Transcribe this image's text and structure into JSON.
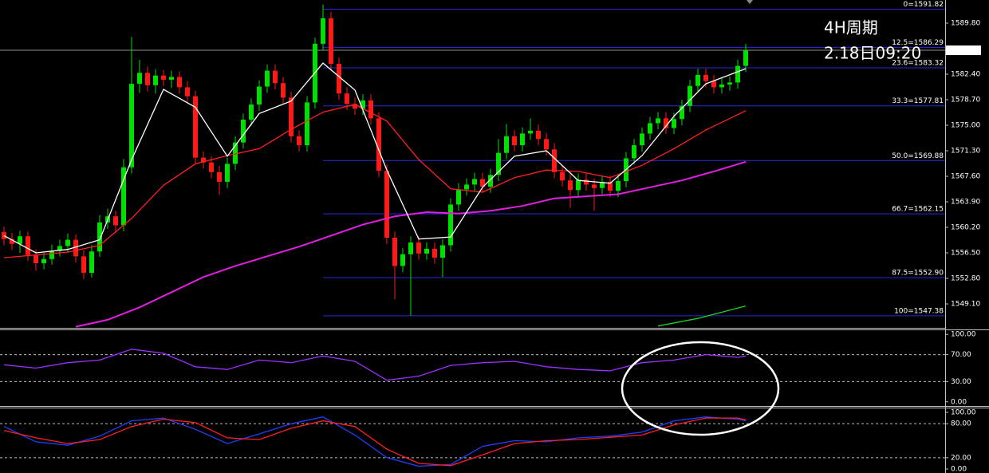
{
  "chart_data": [
    {
      "type": "candlestick",
      "annotations": [
        "4H周期",
        "2.18日09:20"
      ],
      "annotation_color": "#ff3b3b",
      "up_color": "#00e000",
      "down_color": "#ff1a1a",
      "xlim": [
        -0.5,
        118
      ],
      "ylim": [
        1545.75,
        1593.15
      ],
      "yticks": [
        {
          "value": 1589.8,
          "label": "1589.80"
        },
        {
          "value": 1582.4,
          "label": "1582.40"
        },
        {
          "value": 1578.7,
          "label": "1578.70"
        },
        {
          "value": 1575,
          "label": "1575.00"
        },
        {
          "value": 1571.3,
          "label": "1571.30"
        },
        {
          "value": 1567.6,
          "label": "1567.60"
        },
        {
          "value": 1563.9,
          "label": "1563.90"
        },
        {
          "value": 1560.2,
          "label": "1560.20"
        },
        {
          "value": 1556.5,
          "label": "1556.50"
        },
        {
          "value": 1552.8,
          "label": "1552.80"
        },
        {
          "value": 1549.1,
          "label": "1549.10"
        }
      ],
      "last_price": 1585.86,
      "fib_color": "#2a2ad8",
      "fib_levels": [
        {
          "value": 1591.82,
          "label": "0=1591.82"
        },
        {
          "value": 1586.29,
          "label": "12.5=1586.29"
        },
        {
          "value": 1583.32,
          "label": "23.6=1583.32"
        },
        {
          "value": 1577.81,
          "label": "33.3=1577.81"
        },
        {
          "value": 1569.88,
          "label": "50.0=1569.88"
        },
        {
          "value": 1562.15,
          "label": "66.7=1562.15"
        },
        {
          "value": 1552.9,
          "label": "87.5=1552.90"
        },
        {
          "value": 1547.38,
          "label": "100=1547.38"
        }
      ],
      "open": [
        1559.5,
        1558.5,
        1557.8,
        1558.9,
        1556.2,
        1555.0,
        1555.6,
        1556.8,
        1557.5,
        1558.4,
        1556.0,
        1553.6,
        1556.7,
        1560.9,
        1561.8,
        1560.5,
        1568.9,
        1581.0,
        1582.6,
        1580.8,
        1582.2,
        1581.6,
        1582.0,
        1580.5,
        1579.2,
        1570.3,
        1569.6,
        1568.2,
        1566.8,
        1569.4,
        1572.5,
        1575.8,
        1578.0,
        1580.6,
        1582.9,
        1581.1,
        1579.0,
        1573.4,
        1572.1,
        1578.3,
        1586.8,
        1590.5,
        1583.9,
        1579.6,
        1578.1,
        1577.4,
        1578.6,
        1576.0,
        1568.4,
        1558.7,
        1554.6,
        1556.3,
        1558.0,
        1556.4,
        1557.1,
        1555.8,
        1557.6,
        1563.5,
        1565.7,
        1566.4,
        1567.2,
        1566.1,
        1567.8,
        1571.0,
        1573.4,
        1572.1,
        1573.8,
        1574.2,
        1573.0,
        1571.5,
        1568.2,
        1567.0,
        1565.6,
        1567.1,
        1566.4,
        1565.9,
        1566.8,
        1565.5,
        1566.9,
        1570.2,
        1572.1,
        1573.8,
        1575.3,
        1576.0,
        1574.6,
        1575.9,
        1577.8,
        1580.7,
        1582.3,
        1581.4,
        1580.5,
        1580.9,
        1581.2,
        1583.6
      ],
      "high": [
        1560.3,
        1559.4,
        1559.7,
        1559.6,
        1557.0,
        1556.5,
        1557.7,
        1558.4,
        1559.3,
        1559.2,
        1556.9,
        1557.6,
        1562.0,
        1562.9,
        1562.6,
        1570.1,
        1587.8,
        1584.5,
        1583.5,
        1583.1,
        1583.0,
        1582.9,
        1582.8,
        1581.4,
        1580.0,
        1571.2,
        1570.5,
        1569.1,
        1570.3,
        1573.4,
        1576.7,
        1578.9,
        1581.5,
        1583.8,
        1583.8,
        1582.0,
        1579.9,
        1574.3,
        1579.2,
        1587.7,
        1592.5,
        1591.4,
        1584.8,
        1580.5,
        1579.0,
        1579.5,
        1579.5,
        1576.9,
        1569.3,
        1559.6,
        1557.2,
        1558.9,
        1558.9,
        1558.0,
        1558.0,
        1558.5,
        1564.4,
        1566.6,
        1567.3,
        1568.1,
        1568.1,
        1568.7,
        1573.0,
        1575.2,
        1574.3,
        1574.7,
        1576.0,
        1575.1,
        1573.9,
        1572.4,
        1569.1,
        1567.9,
        1568.0,
        1568.0,
        1567.3,
        1567.7,
        1567.7,
        1567.8,
        1571.1,
        1573.0,
        1574.7,
        1576.2,
        1576.9,
        1576.9,
        1576.8,
        1578.7,
        1581.6,
        1583.2,
        1583.2,
        1582.3,
        1581.8,
        1582.1,
        1584.5,
        1586.8
      ],
      "low": [
        1557.6,
        1556.9,
        1556.5,
        1555.3,
        1553.9,
        1554.1,
        1554.8,
        1556.0,
        1556.6,
        1555.1,
        1552.7,
        1552.9,
        1555.9,
        1560.0,
        1559.4,
        1559.6,
        1568.0,
        1579.7,
        1579.9,
        1579.6,
        1580.7,
        1580.4,
        1579.6,
        1578.3,
        1569.4,
        1568.7,
        1567.3,
        1564.9,
        1565.9,
        1568.5,
        1571.6,
        1574.9,
        1577.1,
        1579.7,
        1580.2,
        1578.1,
        1572.5,
        1571.2,
        1571.2,
        1577.4,
        1585.9,
        1583.0,
        1578.7,
        1577.2,
        1576.5,
        1576.5,
        1575.1,
        1567.5,
        1557.8,
        1549.8,
        1553.7,
        1547.4,
        1555.5,
        1555.5,
        1554.9,
        1553.0,
        1556.7,
        1562.6,
        1564.8,
        1565.5,
        1565.2,
        1565.2,
        1566.9,
        1570.1,
        1571.2,
        1571.2,
        1572.9,
        1572.1,
        1570.6,
        1567.3,
        1566.1,
        1563.0,
        1564.7,
        1565.5,
        1562.6,
        1565.0,
        1564.6,
        1564.6,
        1566.0,
        1569.3,
        1571.2,
        1572.9,
        1574.4,
        1573.7,
        1573.7,
        1575.0,
        1576.9,
        1579.8,
        1580.5,
        1579.6,
        1579.6,
        1580.0,
        1580.3,
        1582.7
      ],
      "close": [
        1558.5,
        1557.8,
        1558.9,
        1556.2,
        1555.0,
        1555.6,
        1556.8,
        1557.5,
        1558.4,
        1556.0,
        1553.6,
        1556.7,
        1560.9,
        1561.8,
        1560.5,
        1568.9,
        1581.0,
        1582.6,
        1580.8,
        1582.2,
        1581.6,
        1582.0,
        1580.5,
        1579.2,
        1570.3,
        1569.6,
        1568.2,
        1566.8,
        1569.4,
        1572.5,
        1575.8,
        1578.0,
        1580.6,
        1582.9,
        1581.1,
        1579.0,
        1573.4,
        1572.1,
        1578.3,
        1586.8,
        1590.5,
        1583.9,
        1579.6,
        1578.1,
        1577.4,
        1578.6,
        1576.0,
        1568.4,
        1558.7,
        1554.6,
        1556.3,
        1558.0,
        1556.4,
        1557.1,
        1555.8,
        1557.6,
        1563.5,
        1565.7,
        1566.4,
        1567.2,
        1566.1,
        1567.8,
        1571.0,
        1573.4,
        1572.1,
        1573.8,
        1574.2,
        1573.0,
        1571.5,
        1568.2,
        1567.0,
        1565.6,
        1567.1,
        1566.4,
        1565.9,
        1566.8,
        1565.5,
        1566.9,
        1570.2,
        1572.1,
        1573.8,
        1575.3,
        1576.0,
        1574.6,
        1575.9,
        1577.8,
        1580.7,
        1582.3,
        1581.4,
        1580.5,
        1580.9,
        1581.2,
        1583.6,
        1585.86
      ],
      "series": [
        {
          "color": "#e020e0",
          "x": [
            9,
            13,
            17,
            21,
            25,
            29,
            33,
            37,
            41,
            45,
            49,
            53,
            57,
            61,
            65,
            69,
            73,
            77,
            81,
            85,
            89,
            93
          ],
          "values": [
            1545.8,
            1546.8,
            1548.6,
            1550.8,
            1553.0,
            1554.6,
            1556.0,
            1557.4,
            1559.0,
            1560.6,
            1561.8,
            1562.4,
            1562.2,
            1562.6,
            1563.3,
            1564.4,
            1564.7,
            1565.0,
            1566.0,
            1567.0,
            1568.3,
            1569.7
          ]
        },
        {
          "color": "#ff2020",
          "x": [
            0,
            4,
            8,
            12,
            16,
            20,
            24,
            28,
            32,
            36,
            40,
            44,
            48,
            52,
            56,
            60,
            64,
            68,
            72,
            76,
            80,
            84,
            88,
            93
          ],
          "values": [
            1555.8,
            1556.2,
            1556.6,
            1557.6,
            1561.5,
            1566.3,
            1569.4,
            1570.6,
            1571.6,
            1574.4,
            1576.9,
            1578.0,
            1575.6,
            1570.0,
            1565.8,
            1565.3,
            1567.4,
            1568.5,
            1568.3,
            1567.4,
            1569.2,
            1571.6,
            1574.3,
            1577.1
          ]
        },
        {
          "color": "#ffffff",
          "x": [
            0,
            4,
            8,
            12,
            16,
            20,
            24,
            28,
            32,
            36,
            40,
            44,
            48,
            52,
            56,
            60,
            64,
            68,
            72,
            76,
            80,
            84,
            88,
            93
          ],
          "values": [
            1559.0,
            1556.5,
            1557.0,
            1558.4,
            1570.0,
            1580.2,
            1577.6,
            1570.5,
            1576.7,
            1578.5,
            1584.0,
            1580.1,
            1568.5,
            1558.5,
            1558.8,
            1566.0,
            1570.5,
            1571.3,
            1567.0,
            1566.6,
            1570.6,
            1576.3,
            1581.0,
            1583.2
          ]
        },
        {
          "color": "#20d020",
          "x": [
            82,
            87,
            93
          ],
          "values": [
            1545.9,
            1547.0,
            1548.8
          ]
        }
      ]
    },
    {
      "type": "line",
      "grid": "dashed",
      "xlim": [
        -0.5,
        118
      ],
      "ylim": [
        -5,
        105
      ],
      "yticks": [
        {
          "value": 100,
          "label": "100.00"
        },
        {
          "value": 70,
          "label": "70.00"
        },
        {
          "value": 30,
          "label": "30.00"
        },
        {
          "value": 0,
          "label": "0.00"
        }
      ],
      "series": [
        {
          "color": "#9b30ff",
          "x": [
            0,
            4,
            8,
            12,
            16,
            20,
            24,
            28,
            32,
            36,
            40,
            44,
            48,
            52,
            56,
            60,
            64,
            68,
            72,
            76,
            80,
            84,
            88,
            92,
            93
          ],
          "values": [
            55,
            50,
            58,
            62,
            78,
            72,
            52,
            48,
            62,
            58,
            68,
            60,
            32,
            38,
            54,
            58,
            60,
            52,
            48,
            46,
            58,
            62,
            70,
            66,
            68
          ]
        }
      ]
    },
    {
      "type": "line",
      "grid": "dashed",
      "xlim": [
        -0.5,
        118
      ],
      "ylim": [
        -7,
        107
      ],
      "yticks": [
        {
          "value": 100,
          "label": "100.00"
        },
        {
          "value": 80,
          "label": "80.00"
        },
        {
          "value": 20,
          "label": "20.00"
        },
        {
          "value": 0,
          "label": "0.00"
        }
      ],
      "series": [
        {
          "color": "#2040ff",
          "x": [
            0,
            4,
            8,
            12,
            16,
            20,
            24,
            28,
            32,
            36,
            40,
            44,
            48,
            52,
            56,
            60,
            64,
            68,
            72,
            76,
            80,
            84,
            88,
            92,
            93
          ],
          "values": [
            75,
            48,
            42,
            58,
            85,
            90,
            70,
            45,
            62,
            80,
            92,
            60,
            20,
            5,
            8,
            40,
            50,
            48,
            55,
            58,
            65,
            85,
            92,
            88,
            85
          ]
        },
        {
          "color": "#ff2020",
          "x": [
            0,
            4,
            8,
            12,
            16,
            20,
            24,
            28,
            32,
            36,
            40,
            44,
            48,
            52,
            56,
            60,
            64,
            68,
            72,
            76,
            80,
            84,
            88,
            92,
            93
          ],
          "values": [
            68,
            55,
            45,
            52,
            75,
            88,
            82,
            55,
            52,
            72,
            85,
            75,
            35,
            10,
            6,
            25,
            45,
            50,
            52,
            56,
            60,
            78,
            90,
            90,
            87
          ]
        }
      ]
    }
  ]
}
